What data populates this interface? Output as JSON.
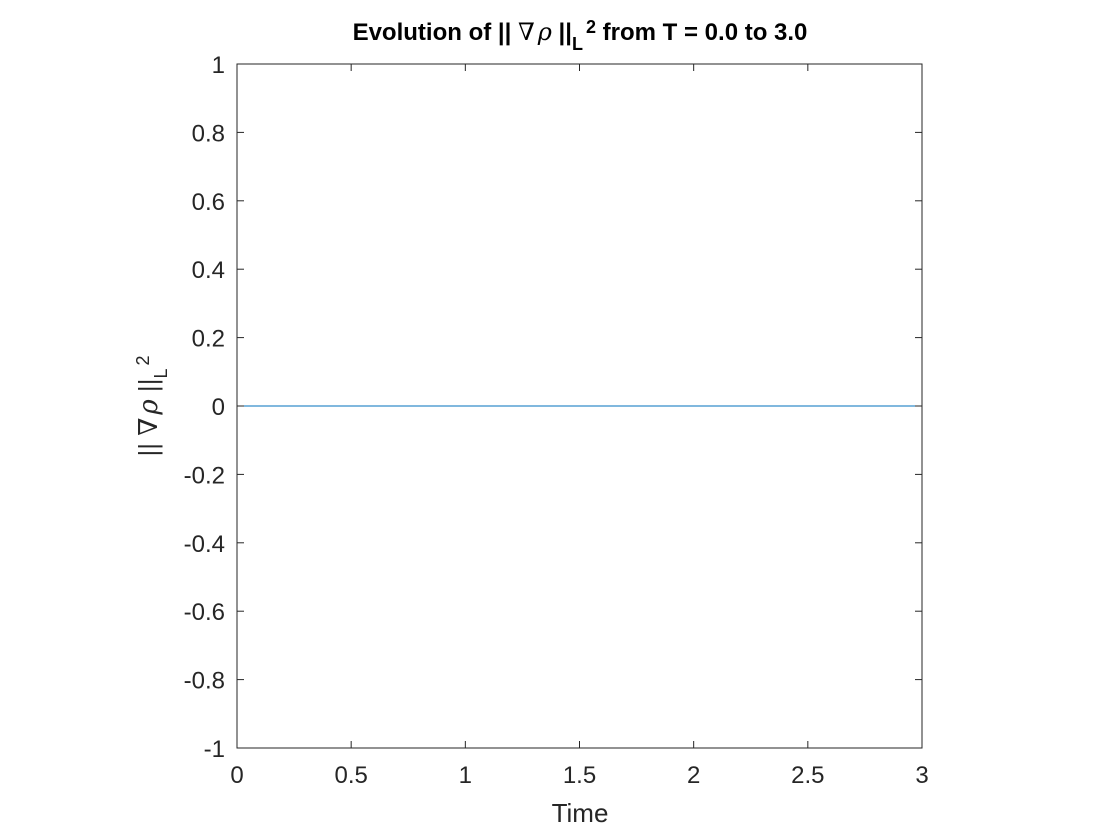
{
  "chart_data": {
    "type": "line",
    "title": {
      "prefix": "Evolution of ",
      "norm_open": "||",
      "nabla": "∇",
      "rho": "ρ",
      "norm_close": "||",
      "sub": "L",
      "sup": "2",
      "suffix": " from T = 0.0 to 3.0"
    },
    "xlabel": "Time",
    "ylabel": {
      "norm_open": "||",
      "nabla": "∇",
      "rho": "ρ",
      "norm_close": "||",
      "sub": "L",
      "sup": "2"
    },
    "xlim": [
      0,
      3
    ],
    "ylim": [
      -1,
      1
    ],
    "xticks": [
      0,
      0.5,
      1,
      1.5,
      2,
      2.5,
      3
    ],
    "xtick_labels": [
      "0",
      "0.5",
      "1",
      "1.5",
      "2",
      "2.5",
      "3"
    ],
    "yticks": [
      -1,
      -0.8,
      -0.6,
      -0.4,
      -0.2,
      0,
      0.2,
      0.4,
      0.6,
      0.8,
      1
    ],
    "ytick_labels": [
      "-1",
      "-0.8",
      "-0.6",
      "-0.4",
      "-0.2",
      "0",
      "0.2",
      "0.4",
      "0.6",
      "0.8",
      "1"
    ],
    "grid": false,
    "series": [
      {
        "color": "#0072BD",
        "x": [
          0,
          3
        ],
        "y": [
          0,
          0
        ]
      }
    ]
  }
}
